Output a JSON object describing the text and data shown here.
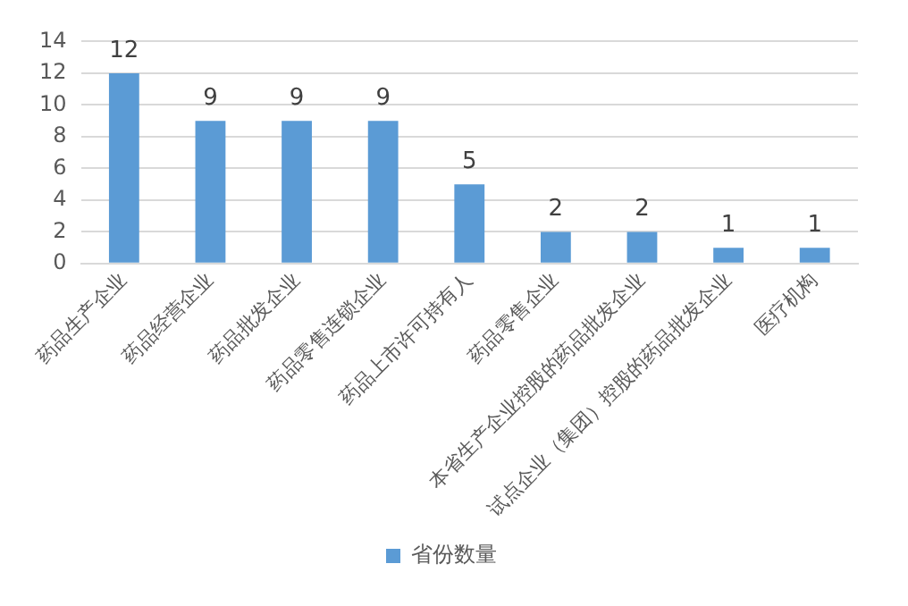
{
  "chart_data": {
    "type": "bar",
    "categories": [
      "药品生产企业",
      "药品经营企业",
      "药品批发企业",
      "药品零售连锁企业",
      "药品上市许可持有人",
      "药品零售企业",
      "本省生产企业控股的药品批发企业",
      "试点企业（集团）控股的药品批发企业",
      "医疗机构"
    ],
    "series": [
      {
        "name": "省份数量",
        "color": "#5b9bd5",
        "values": [
          12,
          9,
          9,
          9,
          5,
          2,
          2,
          1,
          1
        ]
      }
    ],
    "ylim": [
      0,
      14
    ],
    "yticks": [
      0,
      2,
      4,
      6,
      8,
      10,
      12,
      14
    ],
    "grid": "y",
    "legend": "bottom",
    "data_labels": true
  }
}
